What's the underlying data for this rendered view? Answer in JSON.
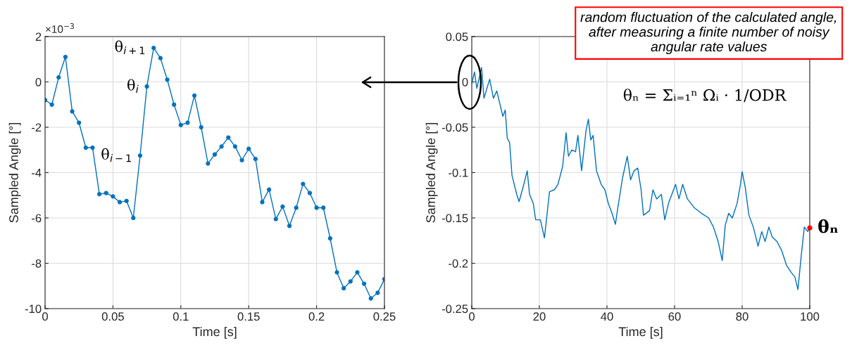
{
  "chart_data": [
    {
      "type": "line",
      "xlabel": "Time [s]",
      "ylabel": "Sampled Angle [°]",
      "xlim": [
        0,
        0.25
      ],
      "xticks": [
        0,
        0.05,
        0.1,
        0.15,
        0.2,
        0.25
      ],
      "ylim": [
        -10,
        2
      ],
      "yticks": [
        -10,
        -8,
        -6,
        -4,
        -2,
        0,
        2
      ],
      "grid": true,
      "marker": "circle",
      "line_style": "solid",
      "x": [
        0,
        0.005,
        0.01,
        0.015,
        0.02,
        0.025,
        0.03,
        0.035,
        0.04,
        0.045,
        0.05,
        0.055,
        0.06,
        0.065,
        0.07,
        0.075,
        0.08,
        0.085,
        0.09,
        0.095,
        0.1,
        0.105,
        0.11,
        0.115,
        0.12,
        0.125,
        0.13,
        0.135,
        0.14,
        0.145,
        0.15,
        0.155,
        0.16,
        0.165,
        0.17,
        0.175,
        0.18,
        0.185,
        0.19,
        0.195,
        0.2,
        0.205,
        0.21,
        0.215,
        0.22,
        0.225,
        0.23,
        0.235,
        0.24,
        0.245,
        0.25
      ],
      "series": [
        {
          "color": "#0072bd",
          "values": [
            -0.8,
            -1.0,
            0.2,
            1.1,
            -1.3,
            -1.8,
            -2.9,
            -2.9,
            -4.95,
            -4.9,
            -5.05,
            -5.3,
            -5.25,
            -6.0,
            -3.25,
            -0.2,
            1.5,
            1.05,
            0.1,
            -1.0,
            -1.9,
            -1.8,
            -0.6,
            -2.0,
            -3.6,
            -3.2,
            -2.85,
            -2.45,
            -2.85,
            -3.45,
            -2.95,
            -3.4,
            -5.3,
            -4.75,
            -6.05,
            -5.5,
            -6.35,
            -5.55,
            -4.5,
            -4.9,
            -5.55,
            -5.55,
            -6.9,
            -8.4,
            -9.1,
            -8.8,
            -8.4,
            -8.9,
            -9.55,
            -9.3,
            -8.7
          ]
        }
      ],
      "annotations": [
        "×10$^{−3}$",
        {
          "text": "θ$_{i+1}$",
          "x": 0.08,
          "y": 1.5
        },
        {
          "text": "θ$_{i}$",
          "x": 0.075,
          "y": -0.2
        },
        {
          "text": "θ$_{i−1}$",
          "x": 0.07,
          "y": -3.25
        }
      ]
    },
    {
      "type": "line",
      "xlabel": "Time [s]",
      "ylabel": "Sampled Angle [°]",
      "xlim": [
        0,
        100
      ],
      "xticks": [
        0,
        20,
        40,
        60,
        80,
        100
      ],
      "ylim": [
        -0.25,
        0.05
      ],
      "yticks": [
        -0.25,
        -0.2,
        -0.15,
        -0.1,
        -0.05,
        0,
        0.05
      ],
      "grid": true,
      "marker": "none",
      "line_style": "solid",
      "series": [
        {
          "color": "#0072bd",
          "x": [
            0,
            0.8,
            1.5,
            2.9,
            3.6,
            5.3,
            6.4,
            7.4,
            9.2,
            9.9,
            10.5,
            11.2,
            11.9,
            13.3,
            14.0,
            15.4,
            16.4,
            17.1,
            18.2,
            18.9,
            20.3,
            21.5,
            22.3,
            23.0,
            24.4,
            25.5,
            26.2,
            26.9,
            27.9,
            28.6,
            29.6,
            30.7,
            31.4,
            32.5,
            33.8,
            34.5,
            35.2,
            35.9,
            36.9,
            38.3,
            39.4,
            40.4,
            41.5,
            42.5,
            43.2,
            44.6,
            46.0,
            47.0,
            48.0,
            49.1,
            50.1,
            50.8,
            52.6,
            53.6,
            54.7,
            56.1,
            57.1,
            58.2,
            60.3,
            61.3,
            62.4,
            63.8,
            65.9,
            68.0,
            70.1,
            71.5,
            72.9,
            74.1,
            75.0,
            76.0,
            77.1,
            78.5,
            79.5,
            80.0,
            80.9,
            82.0,
            83.3,
            84.7,
            85.8,
            86.8,
            87.9,
            88.9,
            90.3,
            91.7,
            93.1,
            94.5,
            95.6,
            96.5,
            97.5,
            98.4,
            99.4,
            100
          ],
          "values": [
            -0.002,
            0.011,
            -0.007,
            0.016,
            -0.018,
            0.003,
            -0.018,
            -0.01,
            -0.038,
            -0.031,
            -0.062,
            -0.067,
            -0.103,
            -0.124,
            -0.132,
            -0.113,
            -0.098,
            -0.124,
            -0.134,
            -0.152,
            -0.152,
            -0.172,
            -0.145,
            -0.121,
            -0.119,
            -0.113,
            -0.103,
            -0.093,
            -0.056,
            -0.082,
            -0.075,
            -0.077,
            -0.059,
            -0.098,
            -0.054,
            -0.041,
            -0.064,
            -0.059,
            -0.098,
            -0.113,
            -0.119,
            -0.134,
            -0.145,
            -0.157,
            -0.139,
            -0.106,
            -0.082,
            -0.108,
            -0.098,
            -0.095,
            -0.119,
            -0.147,
            -0.142,
            -0.119,
            -0.129,
            -0.124,
            -0.152,
            -0.134,
            -0.113,
            -0.129,
            -0.113,
            -0.129,
            -0.139,
            -0.145,
            -0.15,
            -0.16,
            -0.176,
            -0.197,
            -0.158,
            -0.145,
            -0.15,
            -0.134,
            -0.113,
            -0.099,
            -0.116,
            -0.147,
            -0.16,
            -0.181,
            -0.165,
            -0.176,
            -0.16,
            -0.171,
            -0.176,
            -0.186,
            -0.202,
            -0.21,
            -0.215,
            -0.229,
            -0.191,
            -0.16,
            -0.165,
            -0.161
          ]
        },
        {
          "type": "scatter",
          "marker": "circle",
          "color": "#ff0000",
          "x": [
            100
          ],
          "values": [
            -0.161
          ]
        }
      ],
      "annotations": [
        "random fluctuation of the calculated angle, after measuring a finite number of noisy angular rate values",
        "θₙ = Σᵢ₌₁ⁿ Ωᵢ · 1/ODR",
        {
          "text": "θₙ",
          "x": 100,
          "y": -0.161
        }
      ]
    }
  ]
}
